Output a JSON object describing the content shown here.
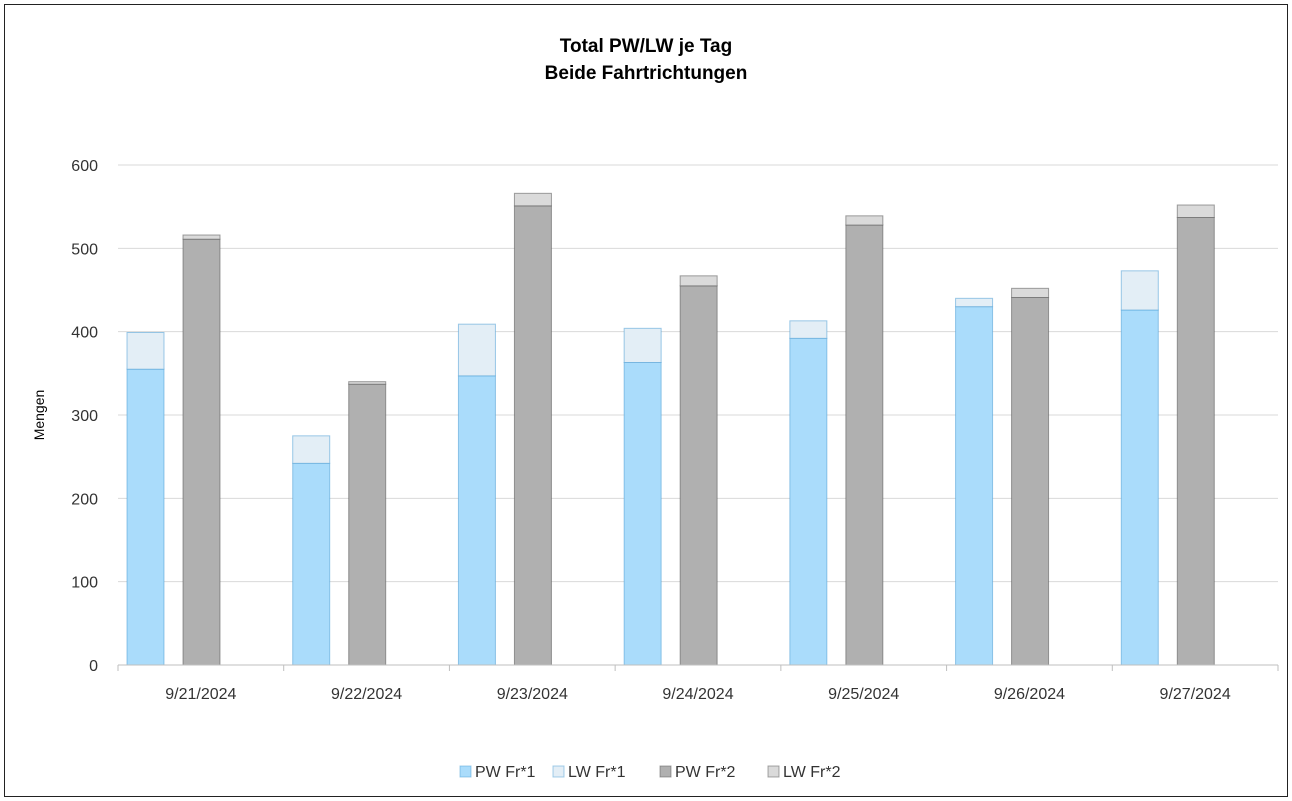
{
  "chart_data": {
    "type": "bar",
    "stacked_groups": true,
    "title": [
      "Total PW/LW  je Tag",
      "Beide Fahrtrichtungen"
    ],
    "xlabel": "",
    "ylabel": "Mengen",
    "ylim": [
      0,
      600
    ],
    "yticks": [
      0,
      100,
      200,
      300,
      400,
      500,
      600
    ],
    "grid": true,
    "legend_position": "bottom",
    "categories": [
      "9/21/2024",
      "9/22/2024",
      "9/23/2024",
      "9/24/2024",
      "9/25/2024",
      "9/26/2024",
      "9/27/2024"
    ],
    "series": [
      {
        "name": "PW Fr*1",
        "stack": "1",
        "color": "#aadcfb",
        "values": [
          355,
          242,
          347,
          363,
          392,
          430,
          426
        ]
      },
      {
        "name": "LW Fr*1",
        "stack": "1",
        "color": "#e3eef6",
        "values": [
          44,
          33,
          62,
          41,
          21,
          10,
          47
        ]
      },
      {
        "name": "PW Fr*2",
        "stack": "2",
        "color": "#b0b0b0",
        "values": [
          511,
          337,
          551,
          455,
          528,
          441,
          537
        ]
      },
      {
        "name": "LW Fr*2",
        "stack": "2",
        "color": "#dadada",
        "values": [
          5,
          3,
          15,
          12,
          11,
          11,
          15
        ]
      }
    ]
  }
}
